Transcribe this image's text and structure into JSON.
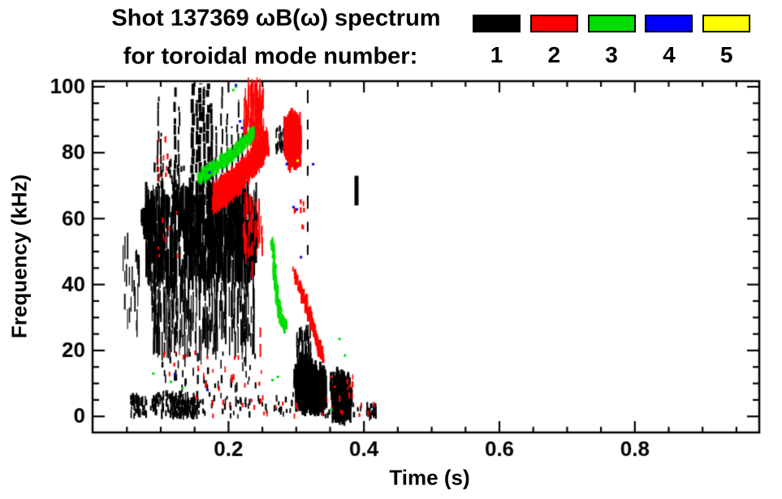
{
  "chart_data": {
    "type": "scatter",
    "title": "Shot 137369 ωB(ω) spectrum",
    "subtitle": "for toroidal mode number:",
    "xlabel": "Time (s)",
    "ylabel": "Frequency (kHz)",
    "xlim": [
      -0.0007,
      0.9837
    ],
    "ylim": [
      -4.87,
      101.7
    ],
    "xticks": {
      "major": [
        0.2,
        0.4,
        0.6,
        0.8
      ],
      "labels": [
        "0.2",
        "0.4",
        "0.6",
        "0.8"
      ],
      "minor_step": 0.05
    },
    "yticks": {
      "major": [
        0,
        20,
        40,
        60,
        80,
        100
      ],
      "labels": [
        "0",
        "20",
        "40",
        "60",
        "80",
        "100"
      ],
      "minor_step": 5
    },
    "grid": false,
    "background": "#ffffff",
    "axis_color": "#000000",
    "legend": {
      "position": "top-right",
      "entries": [
        {
          "label": "1",
          "color": "#000000"
        },
        {
          "label": "2",
          "color": "#ff0000"
        },
        {
          "label": "3",
          "color": "#00dd00"
        },
        {
          "label": "4",
          "color": "#0000ff"
        },
        {
          "label": "5",
          "color": "#ffff00"
        }
      ]
    },
    "clusters": [
      {
        "mode": 1,
        "kind": "streaks",
        "t": [
          0.078,
          0.242
        ],
        "f": [
          44,
          67
        ],
        "n": 520,
        "len": [
          4,
          13
        ],
        "w": [
          1,
          3
        ]
      },
      {
        "mode": 1,
        "kind": "streaks",
        "t": [
          0.085,
          0.238
        ],
        "f": [
          20,
          47
        ],
        "n": 300,
        "len": [
          3,
          11
        ],
        "w": [
          1,
          2
        ]
      },
      {
        "mode": 1,
        "kind": "streaks",
        "t": [
          0.042,
          0.068
        ],
        "f": [
          24,
          52
        ],
        "n": 22,
        "len": [
          3,
          9
        ],
        "w": [
          1,
          2
        ]
      },
      {
        "mode": 1,
        "kind": "blob",
        "c": [
          0.082,
          60
        ],
        "r": [
          0.011,
          5
        ],
        "n": 70,
        "len": [
          2,
          5
        ]
      },
      {
        "mode": 1,
        "kind": "box",
        "t": [
          0.09,
          0.135
        ],
        "f": [
          66,
          78
        ],
        "n": 25,
        "len": [
          1,
          3
        ]
      },
      {
        "mode": 1,
        "kind": "spikes",
        "spikes": [
          [
            0.096,
            55,
            97,
            2
          ],
          [
            0.101,
            60,
            86,
            2
          ],
          [
            0.121,
            58,
            100,
            3
          ],
          [
            0.127,
            62,
            94,
            2
          ],
          [
            0.147,
            50,
            101,
            4
          ],
          [
            0.153,
            55,
            96,
            3
          ],
          [
            0.158,
            60,
            101,
            4
          ],
          [
            0.164,
            55,
            100,
            3
          ],
          [
            0.17,
            52,
            101,
            4
          ],
          [
            0.175,
            58,
            95,
            3
          ],
          [
            0.181,
            60,
            88,
            2
          ],
          [
            0.19,
            70,
            100,
            2
          ],
          [
            0.198,
            73,
            93,
            2
          ],
          [
            0.206,
            70,
            88,
            2
          ],
          [
            0.214,
            68,
            96,
            2
          ],
          [
            0.22,
            72,
            86,
            2
          ]
        ]
      },
      {
        "mode": 1,
        "kind": "box",
        "t": [
          0.27,
          0.284
        ],
        "f": [
          81,
          88
        ],
        "n": 28,
        "len": [
          1,
          3
        ]
      },
      {
        "mode": 1,
        "kind": "vdash",
        "t": 0.317,
        "w": 2,
        "dashes": [
          [
            95,
            99
          ],
          [
            87,
            90
          ],
          [
            81,
            84
          ],
          [
            73,
            76
          ],
          [
            63,
            67
          ],
          [
            56,
            59
          ],
          [
            49,
            52
          ]
        ]
      },
      {
        "mode": 1,
        "kind": "vdash",
        "t": 0.389,
        "w": 5,
        "dashes": [
          [
            64,
            73
          ]
        ]
      },
      {
        "mode": 1,
        "kind": "blob",
        "c": [
          0.313,
          10
        ],
        "r": [
          0.016,
          8
        ],
        "n": 500,
        "len": [
          2,
          6
        ]
      },
      {
        "mode": 1,
        "kind": "blob",
        "c": [
          0.331,
          8
        ],
        "r": [
          0.014,
          7
        ],
        "n": 300,
        "len": [
          2,
          6
        ]
      },
      {
        "mode": 1,
        "kind": "streaks",
        "t": [
          0.3,
          0.322
        ],
        "f": [
          17,
          26
        ],
        "n": 40,
        "len": [
          2,
          6
        ],
        "w": [
          1,
          2
        ]
      },
      {
        "mode": 1,
        "kind": "blob",
        "c": [
          0.366,
          6
        ],
        "r": [
          0.016,
          7
        ],
        "n": 330,
        "len": [
          2,
          6
        ]
      },
      {
        "mode": 1,
        "kind": "box",
        "t": [
          0.404,
          0.418
        ],
        "f": [
          0,
          3.5
        ],
        "n": 26,
        "len": [
          1,
          3
        ]
      },
      {
        "mode": 1,
        "kind": "box",
        "t": [
          0.055,
          0.08
        ],
        "f": [
          0,
          6
        ],
        "n": 45,
        "len": [
          1,
          3
        ]
      },
      {
        "mode": 1,
        "kind": "box",
        "t": [
          0.085,
          0.155
        ],
        "f": [
          0,
          7
        ],
        "n": 90,
        "len": [
          1,
          3
        ]
      },
      {
        "mode": 1,
        "kind": "box",
        "t": [
          0.118,
          0.152
        ],
        "f": [
          0,
          5
        ],
        "n": 60,
        "len": [
          1,
          3
        ]
      },
      {
        "mode": 1,
        "kind": "box",
        "t": [
          0.155,
          0.3
        ],
        "f": [
          0,
          7
        ],
        "n": 55,
        "len": [
          1,
          2
        ]
      },
      {
        "mode": 1,
        "kind": "box",
        "t": [
          0.33,
          0.4
        ],
        "f": [
          0,
          4
        ],
        "n": 25,
        "len": [
          1,
          2
        ]
      },
      {
        "mode": 1,
        "kind": "box",
        "t": [
          0.1,
          0.24
        ],
        "f": [
          8,
          20
        ],
        "n": 40,
        "len": [
          1,
          3
        ]
      },
      {
        "mode": 2,
        "kind": "band",
        "pts": [
          [
            0.178,
            66
          ],
          [
            0.215,
            72
          ],
          [
            0.258,
            83
          ]
        ],
        "th": 7.5,
        "n": 750,
        "len": [
          1,
          4
        ]
      },
      {
        "mode": 2,
        "kind": "streaks",
        "t": [
          0.222,
          0.252
        ],
        "f": [
          84,
          100
        ],
        "n": 120,
        "len": [
          3,
          8
        ],
        "w": [
          1,
          2
        ]
      },
      {
        "mode": 2,
        "kind": "streaks",
        "t": [
          0.222,
          0.25
        ],
        "f": [
          48,
          67
        ],
        "n": 55,
        "len": [
          2,
          6
        ],
        "w": [
          1,
          2
        ]
      },
      {
        "mode": 2,
        "kind": "blob",
        "c": [
          0.295,
          84
        ],
        "r": [
          0.013,
          8
        ],
        "n": 420,
        "len": [
          2,
          6
        ]
      },
      {
        "mode": 2,
        "kind": "band",
        "pts": [
          [
            0.296,
            44
          ],
          [
            0.318,
            32
          ],
          [
            0.34,
            17
          ]
        ],
        "th": 3,
        "n": 170,
        "len": [
          1,
          3
        ]
      },
      {
        "mode": 2,
        "kind": "vdash",
        "t": 0.235,
        "w": 2,
        "dashes": [
          [
            42,
            47
          ],
          [
            49,
            53
          ]
        ]
      },
      {
        "mode": 2,
        "kind": "vdash",
        "t": 0.247,
        "w": 2,
        "dashes": [
          [
            18,
            22
          ],
          [
            24,
            27
          ]
        ]
      },
      {
        "mode": 2,
        "kind": "box",
        "t": [
          0.094,
          0.115
        ],
        "f": [
          68,
          85
        ],
        "n": 10,
        "len": [
          1,
          2
        ]
      },
      {
        "mode": 2,
        "kind": "box",
        "t": [
          0.09,
          0.13
        ],
        "f": [
          45,
          62
        ],
        "n": 8,
        "len": [
          1,
          2
        ]
      },
      {
        "mode": 2,
        "kind": "box",
        "t": [
          0.1,
          0.25
        ],
        "f": [
          8,
          20
        ],
        "n": 22,
        "len": [
          1,
          2
        ]
      },
      {
        "mode": 2,
        "kind": "box",
        "t": [
          0.15,
          0.32
        ],
        "f": [
          0,
          6
        ],
        "n": 16,
        "len": [
          1,
          2
        ]
      },
      {
        "mode": 2,
        "kind": "box",
        "t": [
          0.295,
          0.312
        ],
        "f": [
          55,
          66
        ],
        "n": 9,
        "len": [
          1,
          2
        ]
      },
      {
        "mode": 2,
        "kind": "box",
        "t": [
          0.365,
          0.385
        ],
        "f": [
          6,
          13
        ],
        "n": 8,
        "len": [
          1,
          2
        ]
      },
      {
        "mode": 2,
        "kind": "box",
        "t": [
          0.33,
          0.43
        ],
        "f": [
          0,
          6
        ],
        "n": 10,
        "len": [
          1,
          2
        ]
      },
      {
        "mode": 2,
        "kind": "points",
        "pts": [
          [
            0.352,
            12
          ],
          [
            0.357,
            9
          ]
        ]
      },
      {
        "mode": 3,
        "kind": "band",
        "pts": [
          [
            0.155,
            72
          ],
          [
            0.2,
            78.5
          ],
          [
            0.238,
            86
          ]
        ],
        "th": 3,
        "n": 300,
        "len": [
          1,
          3
        ]
      },
      {
        "mode": 3,
        "kind": "band",
        "pts": [
          [
            0.264,
            54
          ],
          [
            0.268,
            44
          ],
          [
            0.272,
            36
          ],
          [
            0.277,
            30
          ],
          [
            0.284,
            27
          ]
        ],
        "th": 2.5,
        "n": 150,
        "len": [
          1,
          3
        ]
      },
      {
        "mode": 3,
        "kind": "points",
        "pts": [
          [
            0.364,
            23.5
          ],
          [
            0.372,
            18.5
          ],
          [
            0.089,
            13
          ],
          [
            0.115,
            10.5
          ],
          [
            0.132,
            8.5
          ],
          [
            0.265,
            11
          ],
          [
            0.273,
            12
          ],
          [
            0.207,
            99
          ],
          [
            0.211,
            100
          ],
          [
            0.352,
            2
          ]
        ]
      },
      {
        "mode": 4,
        "kind": "points",
        "pts": [
          [
            0.172,
            74
          ],
          [
            0.217,
            89.5
          ],
          [
            0.22,
            87.5
          ],
          [
            0.286,
            76.5
          ],
          [
            0.325,
            76.5
          ],
          [
            0.301,
            62.8
          ],
          [
            0.307,
            48.3
          ],
          [
            0.121,
            12.6
          ],
          [
            0.169,
            8
          ],
          [
            0.211,
            100.5
          ],
          [
            0.296,
            63.5
          ]
        ]
      },
      {
        "mode": 5,
        "kind": "points",
        "pts": [
          [
            0.302,
            77.6
          ]
        ]
      }
    ]
  }
}
